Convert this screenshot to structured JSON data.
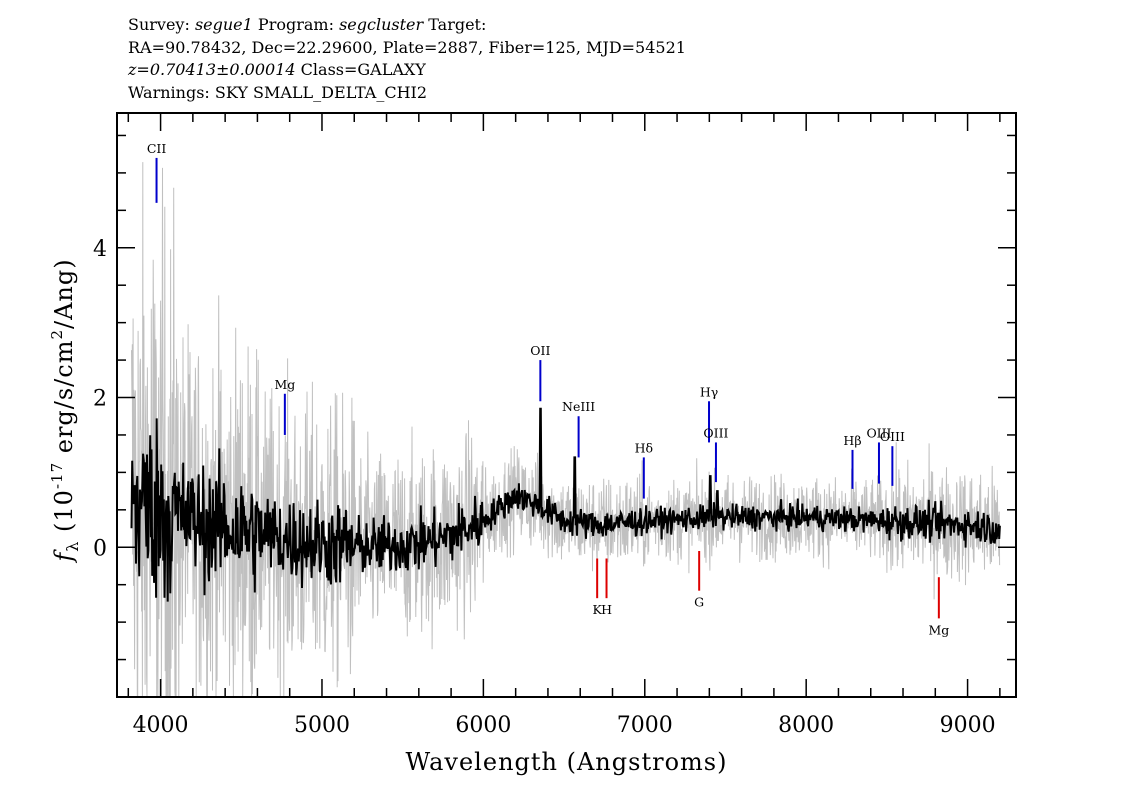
{
  "header": {
    "survey_label": "Survey:",
    "survey": "segue1",
    "program_label": "Program:",
    "program": "segcluster",
    "target_label": "Target:",
    "line2": "RA=90.78432, Dec=22.29600, Plate=2887, Fiber=125, MJD=54521",
    "redshift": "z=0.70413±0.00014",
    "class": "Class=GALAXY",
    "warnings": "Warnings: SKY SMALL_DELTA_CHI2"
  },
  "chart_data": {
    "type": "line",
    "xlabel": "Wavelength (Angstroms)",
    "ylabel_prefix": "f",
    "ylabel_sub": "λ",
    "ylabel_main": " (10",
    "ylabel_exp": "-17",
    "ylabel_mid": " erg/s/cm",
    "ylabel_exp2": "2",
    "ylabel_end": "/Ang)",
    "xlim": [
      3730,
      9300
    ],
    "ylim": [
      -2.0,
      5.8
    ],
    "x_ticks": [
      4000,
      5000,
      6000,
      7000,
      8000,
      9000
    ],
    "y_ticks": [
      0,
      2,
      4
    ],
    "x_minor_step": 200,
    "y_minor_step": 0.5,
    "colors": {
      "flux": "#000000",
      "error": "#c0c0c0",
      "emission": "#0000cc",
      "absorption": "#dd0000"
    },
    "continuum_knots": [
      [
        3820,
        0.6
      ],
      [
        4000,
        0.5
      ],
      [
        4300,
        0.3
      ],
      [
        4600,
        0.2
      ],
      [
        4800,
        0.1
      ],
      [
        5000,
        0.05
      ],
      [
        5300,
        0.0
      ],
      [
        5600,
        0.05
      ],
      [
        5800,
        0.15
      ],
      [
        6000,
        0.35
      ],
      [
        6200,
        0.7
      ],
      [
        6350,
        0.55
      ],
      [
        6500,
        0.35
      ],
      [
        6700,
        0.3
      ],
      [
        7000,
        0.35
      ],
      [
        7500,
        0.4
      ],
      [
        8000,
        0.4
      ],
      [
        8500,
        0.35
      ],
      [
        9000,
        0.3
      ],
      [
        9200,
        0.25
      ]
    ],
    "flux_spikes": [
      [
        6355,
        1.85
      ],
      [
        6565,
        1.2
      ],
      [
        7405,
        0.95
      ],
      [
        7450,
        0.75
      ]
    ],
    "emission_lines": [
      {
        "label": "CII",
        "x": 3975,
        "y_top": 5.2,
        "y_bottom": 4.6
      },
      {
        "label": "Mg",
        "x": 4770,
        "y_top": 2.05,
        "y_bottom": 1.5
      },
      {
        "label": "OII",
        "x": 6353,
        "y_top": 2.5,
        "y_bottom": 1.95
      },
      {
        "label": "NeIII",
        "x": 6590,
        "y_top": 1.75,
        "y_bottom": 1.2
      },
      {
        "label": "Hδ",
        "x": 6994,
        "y_top": 1.2,
        "y_bottom": 0.65
      },
      {
        "label": "Hγ",
        "x": 7398,
        "y_top": 1.95,
        "y_bottom": 1.4
      },
      {
        "label": "OIII",
        "x": 7441,
        "y_top": 1.4,
        "y_bottom": 0.87
      },
      {
        "label": "Hβ",
        "x": 8287,
        "y_top": 1.3,
        "y_bottom": 0.78
      },
      {
        "label": "OIII",
        "x": 8451,
        "y_top": 1.4,
        "y_bottom": 0.85
      },
      {
        "label": "OIII",
        "x": 8534,
        "y_top": 1.35,
        "y_bottom": 0.82
      }
    ],
    "absorption_lines": [
      {
        "label": "K",
        "x": 6705,
        "y_top": -0.15,
        "y_bottom": -0.68
      },
      {
        "label": "H",
        "x": 6763,
        "y_top": -0.15,
        "y_bottom": -0.68
      },
      {
        "label": "G",
        "x": 7337,
        "y_top": -0.05,
        "y_bottom": -0.58
      },
      {
        "label": "Mg",
        "x": 8822,
        "y_top": -0.4,
        "y_bottom": -0.95
      }
    ]
  }
}
